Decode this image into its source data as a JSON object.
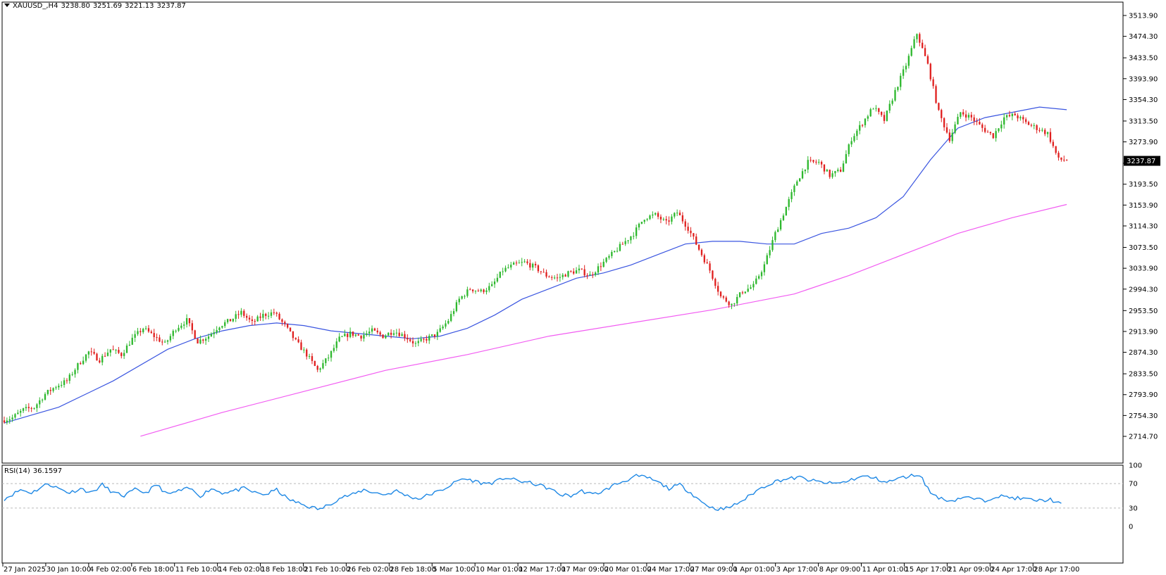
{
  "symbol": {
    "name": "XAUUSD_,H4",
    "open": "3238.80",
    "high": "3251.69",
    "low": "3221.13",
    "close": "3237.87",
    "dropdown_icon": "triangle-down-icon"
  },
  "current_price_label": "3237.87",
  "rsi_panel": {
    "label": "RSI(14)",
    "value": "36.1597",
    "levels": [
      "100",
      "70",
      "30",
      "0"
    ]
  },
  "colors": {
    "bull": "#2eb82e",
    "bear": "#e0201f",
    "ma_fast": "#3a55e0",
    "ma_slow": "#f25cf2",
    "rsi": "#1e88e5"
  },
  "chart_data": [
    {
      "type": "candlestick",
      "ylim": [
        2714.7,
        3513.9
      ],
      "y_ticks": [
        "3513.90",
        "3474.30",
        "3433.50",
        "3393.90",
        "3354.30",
        "3313.50",
        "3273.90",
        "3233.30",
        "3193.50",
        "3153.90",
        "3114.30",
        "3073.50",
        "3033.90",
        "2994.30",
        "2953.50",
        "2913.90",
        "2874.30",
        "2833.50",
        "2793.90",
        "2754.30",
        "2714.70"
      ],
      "x_ticks": [
        "27 Jan 2025",
        "30 Jan 10:00",
        "4 Feb 02:00",
        "6 Feb 18:00",
        "11 Feb 10:00",
        "14 Feb 02:00",
        "18 Feb 18:00",
        "21 Feb 10:00",
        "26 Feb 02:00",
        "28 Feb 18:00",
        "5 Mar 10:00",
        "10 Mar 01:00",
        "12 Mar 17:00",
        "17 Mar 09:00",
        "20 Mar 01:00",
        "24 Mar 17:00",
        "27 Mar 09:00",
        "1 Apr 01:00",
        "3 Apr 17:00",
        "8 Apr 09:00",
        "11 Apr 01:00",
        "15 Apr 17:00",
        "21 Apr 09:00",
        "24 Apr 17:00",
        "28 Apr 17:00"
      ],
      "close_path": [
        [
          0,
          2745
        ],
        [
          4,
          2750
        ],
        [
          8,
          2765
        ],
        [
          12,
          2770
        ],
        [
          16,
          2795
        ],
        [
          20,
          2810
        ],
        [
          24,
          2820
        ],
        [
          28,
          2850
        ],
        [
          32,
          2875
        ],
        [
          36,
          2860
        ],
        [
          40,
          2880
        ],
        [
          44,
          2870
        ],
        [
          48,
          2900
        ],
        [
          52,
          2920
        ],
        [
          56,
          2905
        ],
        [
          60,
          2890
        ],
        [
          64,
          2920
        ],
        [
          68,
          2935
        ],
        [
          72,
          2895
        ],
        [
          76,
          2905
        ],
        [
          80,
          2925
        ],
        [
          84,
          2935
        ],
        [
          88,
          2950
        ],
        [
          92,
          2930
        ],
        [
          96,
          2945
        ],
        [
          100,
          2950
        ],
        [
          104,
          2925
        ],
        [
          108,
          2895
        ],
        [
          112,
          2870
        ],
        [
          116,
          2840
        ],
        [
          120,
          2865
        ],
        [
          124,
          2900
        ],
        [
          128,
          2910
        ],
        [
          132,
          2905
        ],
        [
          136,
          2915
        ],
        [
          140,
          2905
        ],
        [
          144,
          2915
        ],
        [
          148,
          2905
        ],
        [
          152,
          2890
        ],
        [
          156,
          2900
        ],
        [
          160,
          2910
        ],
        [
          164,
          2935
        ],
        [
          168,
          2975
        ],
        [
          172,
          2995
        ],
        [
          176,
          2990
        ],
        [
          180,
          3000
        ],
        [
          184,
          3030
        ],
        [
          188,
          3040
        ],
        [
          192,
          3045
        ],
        [
          196,
          3035
        ],
        [
          200,
          3020
        ],
        [
          204,
          3015
        ],
        [
          208,
          3025
        ],
        [
          212,
          3030
        ],
        [
          216,
          3020
        ],
        [
          220,
          3040
        ],
        [
          224,
          3060
        ],
        [
          228,
          3080
        ],
        [
          232,
          3100
        ],
        [
          236,
          3130
        ],
        [
          240,
          3135
        ],
        [
          244,
          3120
        ],
        [
          248,
          3140
        ],
        [
          252,
          3110
        ],
        [
          256,
          3070
        ],
        [
          260,
          3030
        ],
        [
          264,
          2980
        ],
        [
          268,
          2965
        ],
        [
          272,
          2990
        ],
        [
          276,
          3000
        ],
        [
          280,
          3040
        ],
        [
          284,
          3100
        ],
        [
          288,
          3150
        ],
        [
          292,
          3200
        ],
        [
          296,
          3235
        ],
        [
          300,
          3235
        ],
        [
          304,
          3210
        ],
        [
          308,
          3220
        ],
        [
          312,
          3280
        ],
        [
          316,
          3310
        ],
        [
          320,
          3340
        ],
        [
          324,
          3315
        ],
        [
          328,
          3370
        ],
        [
          332,
          3420
        ],
        [
          336,
          3480
        ],
        [
          340,
          3420
        ],
        [
          344,
          3330
        ],
        [
          348,
          3280
        ],
        [
          352,
          3330
        ],
        [
          356,
          3320
        ],
        [
          360,
          3300
        ],
        [
          364,
          3285
        ],
        [
          368,
          3320
        ],
        [
          372,
          3325
        ],
        [
          376,
          3310
        ],
        [
          380,
          3300
        ],
        [
          384,
          3290
        ],
        [
          388,
          3240
        ]
      ],
      "series": [
        {
          "name": "",
          "type": "moving-average",
          "color": "#3a55e0",
          "points": [
            [
              0,
              2740
            ],
            [
              20,
              2770
            ],
            [
              40,
              2820
            ],
            [
              60,
              2880
            ],
            [
              70,
              2900
            ],
            [
              80,
              2915
            ],
            [
              90,
              2925
            ],
            [
              100,
              2930
            ],
            [
              110,
              2925
            ],
            [
              120,
              2915
            ],
            [
              130,
              2910
            ],
            [
              140,
              2905
            ],
            [
              150,
              2900
            ],
            [
              160,
              2905
            ],
            [
              170,
              2920
            ],
            [
              180,
              2945
            ],
            [
              190,
              2975
            ],
            [
              200,
              2995
            ],
            [
              210,
              3015
            ],
            [
              220,
              3025
            ],
            [
              230,
              3040
            ],
            [
              240,
              3060
            ],
            [
              250,
              3080
            ],
            [
              260,
              3085
            ],
            [
              270,
              3085
            ],
            [
              280,
              3080
            ],
            [
              290,
              3080
            ],
            [
              300,
              3100
            ],
            [
              310,
              3110
            ],
            [
              320,
              3130
            ],
            [
              330,
              3170
            ],
            [
              340,
              3240
            ],
            [
              350,
              3300
            ],
            [
              360,
              3320
            ],
            [
              370,
              3330
            ],
            [
              380,
              3340
            ],
            [
              390,
              3335
            ]
          ]
        },
        {
          "name": "",
          "type": "moving-average",
          "color": "#f25cf2",
          "points": [
            [
              50,
              2715
            ],
            [
              80,
              2760
            ],
            [
              110,
              2800
            ],
            [
              140,
              2840
            ],
            [
              170,
              2870
            ],
            [
              200,
              2905
            ],
            [
              230,
              2930
            ],
            [
              260,
              2955
            ],
            [
              290,
              2985
            ],
            [
              310,
              3020
            ],
            [
              330,
              3060
            ],
            [
              350,
              3100
            ],
            [
              370,
              3130
            ],
            [
              390,
              3155
            ]
          ]
        }
      ]
    },
    {
      "type": "line",
      "title": "RSI(14) 36.1597",
      "ylim": [
        0,
        100
      ],
      "y_ticks": [
        "100",
        "70",
        "30",
        "0"
      ],
      "series": [
        {
          "name": "",
          "points": [
            [
              0,
              45
            ],
            [
              6,
              60
            ],
            [
              10,
              55
            ],
            [
              16,
              70
            ],
            [
              20,
              62
            ],
            [
              24,
              55
            ],
            [
              28,
              62
            ],
            [
              32,
              55
            ],
            [
              36,
              68
            ],
            [
              40,
              55
            ],
            [
              44,
              50
            ],
            [
              48,
              60
            ],
            [
              52,
              55
            ],
            [
              56,
              68
            ],
            [
              60,
              52
            ],
            [
              64,
              58
            ],
            [
              68,
              62
            ],
            [
              72,
              50
            ],
            [
              76,
              62
            ],
            [
              80,
              55
            ],
            [
              84,
              58
            ],
            [
              88,
              62
            ],
            [
              92,
              55
            ],
            [
              96,
              52
            ],
            [
              100,
              60
            ],
            [
              104,
              45
            ],
            [
              108,
              38
            ],
            [
              112,
              32
            ],
            [
              116,
              28
            ],
            [
              120,
              38
            ],
            [
              124,
              48
            ],
            [
              128,
              52
            ],
            [
              132,
              60
            ],
            [
              136,
              55
            ],
            [
              140,
              52
            ],
            [
              144,
              58
            ],
            [
              148,
              50
            ],
            [
              152,
              45
            ],
            [
              156,
              52
            ],
            [
              160,
              58
            ],
            [
              164,
              68
            ],
            [
              168,
              78
            ],
            [
              172,
              75
            ],
            [
              176,
              70
            ],
            [
              180,
              72
            ],
            [
              184,
              80
            ],
            [
              188,
              75
            ],
            [
              192,
              72
            ],
            [
              196,
              68
            ],
            [
              200,
              62
            ],
            [
              204,
              52
            ],
            [
              208,
              50
            ],
            [
              212,
              58
            ],
            [
              216,
              52
            ],
            [
              220,
              58
            ],
            [
              224,
              68
            ],
            [
              228,
              75
            ],
            [
              232,
              82
            ],
            [
              236,
              80
            ],
            [
              240,
              72
            ],
            [
              244,
              62
            ],
            [
              248,
              68
            ],
            [
              252,
              55
            ],
            [
              256,
              40
            ],
            [
              260,
              30
            ],
            [
              264,
              28
            ],
            [
              268,
              35
            ],
            [
              272,
              45
            ],
            [
              276,
              58
            ],
            [
              280,
              68
            ],
            [
              284,
              75
            ],
            [
              288,
              78
            ],
            [
              292,
              80
            ],
            [
              296,
              75
            ],
            [
              300,
              72
            ],
            [
              304,
              70
            ],
            [
              308,
              72
            ],
            [
              312,
              78
            ],
            [
              316,
              82
            ],
            [
              320,
              78
            ],
            [
              324,
              72
            ],
            [
              328,
              78
            ],
            [
              332,
              82
            ],
            [
              336,
              85
            ],
            [
              340,
              55
            ],
            [
              344,
              45
            ],
            [
              348,
              42
            ],
            [
              352,
              48
            ],
            [
              356,
              45
            ],
            [
              360,
              42
            ],
            [
              364,
              50
            ],
            [
              368,
              48
            ],
            [
              372,
              46
            ],
            [
              376,
              44
            ],
            [
              380,
              42
            ],
            [
              384,
              44
            ],
            [
              388,
              36
            ]
          ]
        }
      ]
    }
  ]
}
